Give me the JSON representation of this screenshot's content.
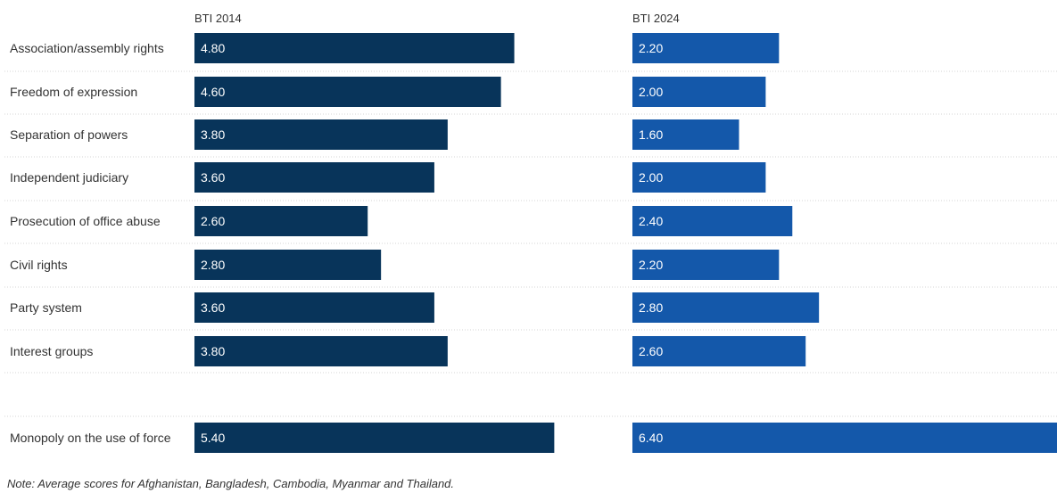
{
  "chart_data": {
    "type": "bar",
    "orientation": "horizontal",
    "panels": [
      {
        "name": "BTI 2014",
        "color": "#08345a"
      },
      {
        "name": "BTI 2024",
        "color": "#1458aa"
      }
    ],
    "rows": [
      {
        "label": "Association/assembly rights",
        "values": [
          4.8,
          2.2
        ],
        "display": [
          "4.80",
          "2.20"
        ]
      },
      {
        "label": "Freedom of expression",
        "values": [
          4.6,
          2.0
        ],
        "display": [
          "4.60",
          "2.00"
        ]
      },
      {
        "label": "Separation of powers",
        "values": [
          3.8,
          1.6
        ],
        "display": [
          "3.80",
          "1.60"
        ]
      },
      {
        "label": "Independent judiciary",
        "values": [
          3.6,
          2.0
        ],
        "display": [
          "3.60",
          "2.00"
        ]
      },
      {
        "label": "Prosecution of office abuse",
        "values": [
          2.6,
          2.4
        ],
        "display": [
          "2.60",
          "2.40"
        ]
      },
      {
        "label": "Civil rights",
        "values": [
          2.8,
          2.2
        ],
        "display": [
          "2.80",
          "2.20"
        ]
      },
      {
        "label": "Party system",
        "values": [
          3.6,
          2.8
        ],
        "display": [
          "3.60",
          "2.80"
        ]
      },
      {
        "label": "Interest groups",
        "values": [
          3.8,
          2.6
        ],
        "display": [
          "3.80",
          "2.60"
        ]
      },
      {
        "label": "Monopoly on the use of force",
        "values": [
          5.4,
          6.4
        ],
        "display": [
          "5.40",
          "6.40"
        ]
      }
    ],
    "note": "Note: Average scores for Afghanistan, Bangladesh, Cambodia, Myanmar and Thailand."
  }
}
